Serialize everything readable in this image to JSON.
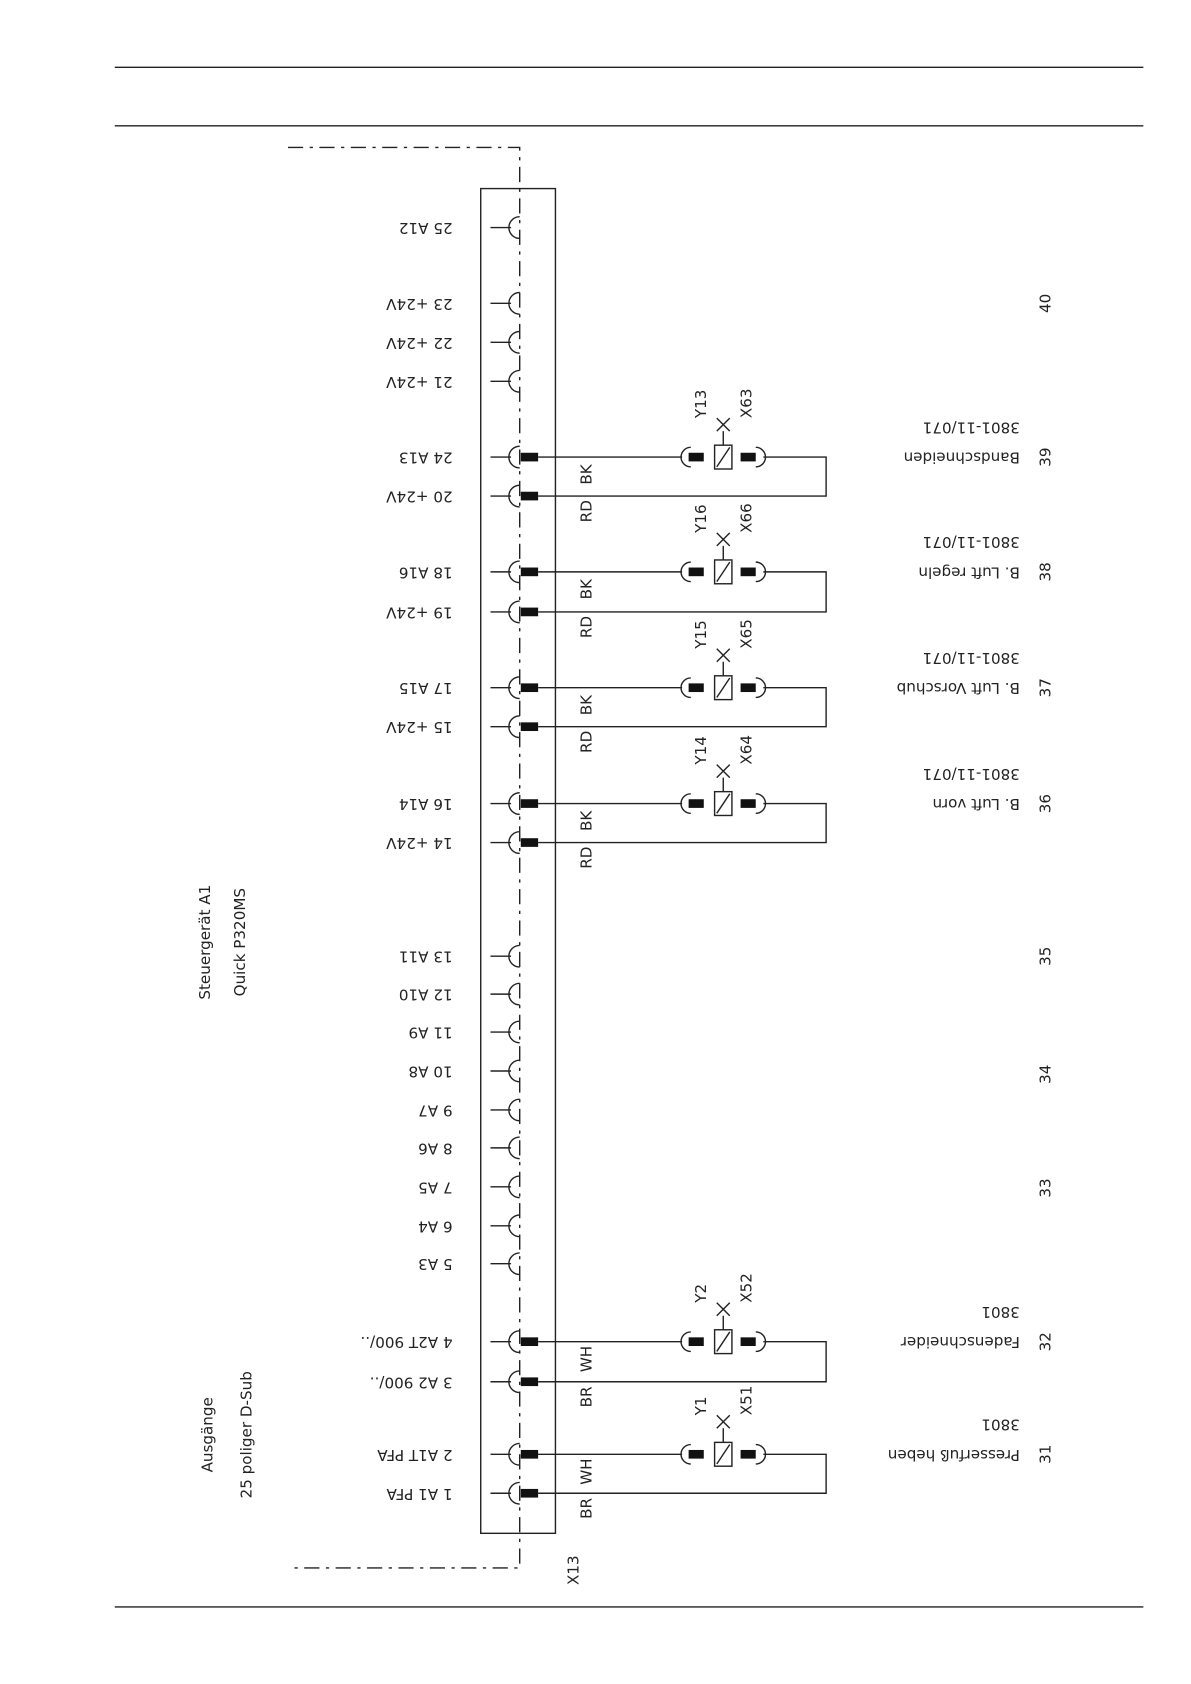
{
  "controller": {
    "title": "Steuergerät A1",
    "model": "Quick P320MS"
  },
  "connector": {
    "title": "Ausgänge",
    "subtitle": "25 poliger D-Sub",
    "name": "X13"
  },
  "pins": [
    "25 A12",
    "23 +24V",
    "22 +24V",
    "21 +24V",
    "24 A13",
    "20 +24V",
    "18 A16",
    "19 +24V",
    "17 A15",
    "15 +24V",
    "16 A14",
    "14  +24V",
    "13 A11",
    "12 A10",
    "11 A9",
    "10 A8",
    "9  A7",
    "8  A6",
    "7  A5",
    "6  A4",
    "5  A3",
    "4  A2T 900/..",
    "3  A2 900/..",
    "2  A1T PFA",
    "1  A1 PFA"
  ],
  "circuits": [
    {
      "valve": "Y13",
      "plug": "X63",
      "wire_top": "BK",
      "wire_bottom": "RD",
      "function": "Bandschneiden",
      "ref": "3801-11/071",
      "number": "39"
    },
    {
      "valve": "Y16",
      "plug": "X66",
      "wire_top": "BK",
      "wire_bottom": "RD",
      "function": "B. Luft regeln",
      "ref": "3801-11/071",
      "number": "38"
    },
    {
      "valve": "Y15",
      "plug": "X65",
      "wire_top": "BK",
      "wire_bottom": "RD",
      "function": "B. Luft Vorschub",
      "ref": "3801-11/071",
      "number": "37"
    },
    {
      "valve": "Y14",
      "plug": "X64",
      "wire_top": "BK",
      "wire_bottom": "RD",
      "function": "B. Luft vorn",
      "ref": "3801-11/071",
      "number": "36"
    },
    {
      "valve": "Y2",
      "plug": "X52",
      "wire_top": "WH",
      "wire_bottom": "BR",
      "function": "Fadenschneider",
      "ref": "3801",
      "number": "32"
    },
    {
      "valve": "Y1",
      "plug": "X51",
      "wire_top": "WH",
      "wire_bottom": "BR",
      "function": "Presserfuß heben",
      "ref": "3801",
      "number": "31"
    }
  ],
  "section_numbers": [
    "40",
    "35",
    "34",
    "33"
  ]
}
